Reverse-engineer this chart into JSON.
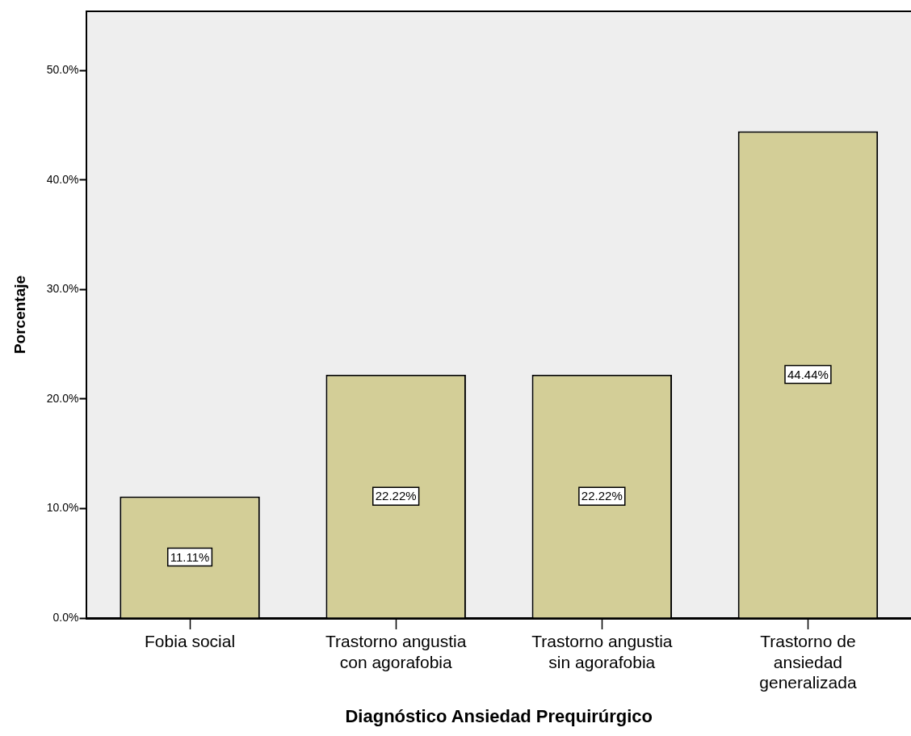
{
  "chart_data": {
    "type": "bar",
    "xlabel": "Diagnóstico Ansiedad Prequirúrgico",
    "ylabel": "Porcentaje",
    "categories": [
      "Fobia social",
      "Trastorno angustia con agorafobia",
      "Trastorno angustia sin agorafobia",
      "Trastorno de ansiedad generalizada"
    ],
    "values": [
      11.11,
      22.22,
      22.22,
      44.44
    ],
    "color": "#d3ce97",
    "value_labels": [
      "11.11%",
      "22.22%",
      "22.22%",
      "44.44%"
    ],
    "ylim": [
      0,
      55.4
    ],
    "yticks": [
      {
        "value": 0,
        "label": "0.0%"
      },
      {
        "value": 10,
        "label": "10.0%"
      },
      {
        "value": 20,
        "label": "20.0%"
      },
      {
        "value": 30,
        "label": "30.0%"
      },
      {
        "value": 40,
        "label": "40.0%"
      },
      {
        "value": 50,
        "label": "50.0%"
      }
    ],
    "grid": false,
    "legend": false
  }
}
